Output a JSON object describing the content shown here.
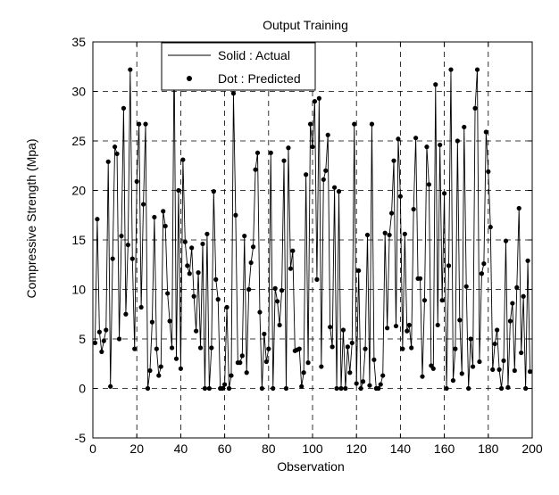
{
  "chart_data": {
    "type": "line",
    "title": "Output Training",
    "xlabel": "Observation",
    "ylabel": "Compressive Strength (Mpa)",
    "xlim": [
      0,
      200
    ],
    "ylim": [
      -5,
      35
    ],
    "x_ticks": [
      0,
      20,
      40,
      60,
      80,
      100,
      120,
      140,
      160,
      180,
      200
    ],
    "y_ticks": [
      -5,
      0,
      5,
      10,
      15,
      20,
      25,
      30,
      35
    ],
    "grid": true,
    "grid_style": "dashed",
    "legend": {
      "position": "top-left",
      "entries": [
        {
          "label": "Solid : Actual",
          "marker": "line"
        },
        {
          "label": "Dot : Predicted",
          "marker": "dot"
        }
      ]
    },
    "series": [
      {
        "name": "Solid : Actual",
        "style": "line",
        "color": "#000000",
        "x_start": 1,
        "values": [
          4.6,
          17.1,
          5.7,
          3.7,
          4.8,
          5.9,
          22.9,
          0.2,
          13.1,
          24.4,
          23.7,
          5.0,
          15.4,
          28.3,
          7.5,
          14.5,
          32.2,
          13.1,
          4.0,
          20.9,
          26.7,
          8.2,
          18.6,
          26.7,
          0.0,
          1.8,
          6.7,
          17.3,
          4.0,
          1.3,
          2.2,
          17.9,
          16.4,
          9.6,
          6.8,
          4.1,
          34.4,
          3.0,
          20.0,
          2.0,
          23.1,
          14.8,
          12.4,
          11.6,
          14.2,
          9.3,
          5.8,
          11.7,
          4.1,
          14.6,
          0.0,
          15.6,
          0.0,
          4.1,
          19.9,
          11.0,
          9.0,
          0.0,
          0.0,
          0.4,
          8.2,
          0.0,
          1.3,
          29.8,
          17.5,
          2.6,
          2.6,
          3.3,
          15.4,
          1.6,
          10.0,
          12.7,
          14.3,
          22.1,
          23.8,
          7.7,
          0.0,
          5.5,
          2.7,
          4.0,
          23.8,
          0.0,
          10.1,
          8.8,
          6.4,
          9.9,
          23.0,
          0.0,
          24.3,
          12.1,
          13.9,
          3.8,
          3.9,
          4.0,
          0.2,
          1.6,
          21.6,
          2.6,
          26.7,
          24.4,
          29.0,
          11.0,
          29.3,
          2.2,
          21.1,
          22.0,
          25.6,
          6.2,
          4.2,
          20.3,
          0.0,
          19.9,
          0.0,
          5.9,
          0.0,
          4.2,
          1.6,
          4.6,
          26.7,
          0.5,
          11.9,
          0.0,
          0.7,
          4.0,
          15.5,
          0.3,
          26.7,
          2.9,
          0.0,
          0.0,
          0.4,
          1.3,
          15.7,
          6.1,
          15.5,
          17.7,
          23.0,
          6.3,
          25.2,
          19.4,
          4.0,
          15.6,
          5.8,
          6.4,
          4.1,
          18.1,
          25.3,
          11.1,
          11.1,
          1.2,
          8.9,
          24.4,
          20.6,
          2.3,
          2.0,
          30.7,
          6.4,
          24.6,
          8.9,
          19.7,
          0.0,
          12.4,
          32.2,
          0.8,
          4.0,
          25.0,
          6.9,
          1.5,
          26.4,
          10.3,
          0.0,
          5.0,
          2.2,
          28.3,
          32.2,
          2.7,
          11.6,
          12.6,
          25.9,
          21.9,
          16.3,
          1.9,
          4.5,
          5.9,
          1.9,
          0.0,
          2.8,
          14.9,
          0.1,
          6.8,
          8.6,
          1.8,
          10.2,
          18.2,
          3.6,
          9.3,
          0.0,
          12.9,
          1.7
        ]
      },
      {
        "name": "Dot : Predicted",
        "style": "dot",
        "color": "#000000",
        "x_start": 1,
        "values": [
          4.6,
          17.1,
          5.7,
          3.7,
          4.8,
          5.9,
          22.9,
          0.2,
          13.1,
          24.4,
          23.7,
          5.0,
          15.4,
          28.3,
          7.5,
          14.5,
          32.2,
          13.1,
          4.0,
          20.9,
          26.7,
          8.2,
          18.6,
          26.7,
          0.0,
          1.8,
          6.7,
          17.3,
          4.0,
          1.3,
          2.2,
          17.9,
          16.4,
          9.6,
          6.8,
          4.1,
          34.4,
          3.0,
          20.0,
          2.0,
          23.1,
          14.8,
          12.4,
          11.6,
          14.2,
          9.3,
          5.8,
          11.7,
          4.1,
          14.6,
          0.0,
          15.6,
          0.0,
          4.1,
          19.9,
          11.0,
          9.0,
          0.0,
          0.0,
          0.4,
          8.2,
          0.0,
          1.3,
          29.8,
          17.5,
          2.6,
          2.6,
          3.3,
          15.4,
          1.6,
          10.0,
          12.7,
          14.3,
          22.1,
          23.8,
          7.7,
          0.0,
          5.5,
          2.7,
          4.0,
          23.8,
          0.0,
          10.1,
          8.8,
          6.4,
          9.9,
          23.0,
          0.0,
          24.3,
          12.1,
          13.9,
          3.8,
          3.9,
          4.0,
          0.2,
          1.6,
          21.6,
          2.6,
          26.7,
          24.4,
          29.0,
          11.0,
          29.3,
          2.2,
          21.1,
          22.0,
          25.6,
          6.2,
          4.2,
          20.3,
          0.0,
          19.9,
          0.0,
          5.9,
          0.0,
          4.2,
          1.6,
          4.6,
          26.7,
          0.5,
          11.9,
          0.0,
          0.7,
          4.0,
          15.5,
          0.3,
          26.7,
          2.9,
          0.0,
          0.0,
          0.4,
          1.3,
          15.7,
          6.1,
          15.5,
          17.7,
          23.0,
          6.3,
          25.2,
          19.4,
          4.0,
          15.6,
          5.8,
          6.4,
          4.1,
          18.1,
          25.3,
          11.1,
          11.1,
          1.2,
          8.9,
          24.4,
          20.6,
          2.3,
          2.0,
          30.7,
          6.4,
          24.6,
          8.9,
          19.7,
          0.0,
          12.4,
          32.2,
          0.8,
          4.0,
          25.0,
          6.9,
          1.5,
          26.4,
          10.3,
          0.0,
          5.0,
          2.2,
          28.3,
          32.2,
          2.7,
          11.6,
          12.6,
          25.9,
          21.9,
          16.3,
          1.9,
          4.5,
          5.9,
          1.9,
          0.0,
          2.8,
          14.9,
          0.1,
          6.8,
          8.6,
          1.8,
          10.2,
          18.2,
          3.6,
          9.3,
          0.0,
          12.9,
          1.7
        ]
      }
    ]
  }
}
